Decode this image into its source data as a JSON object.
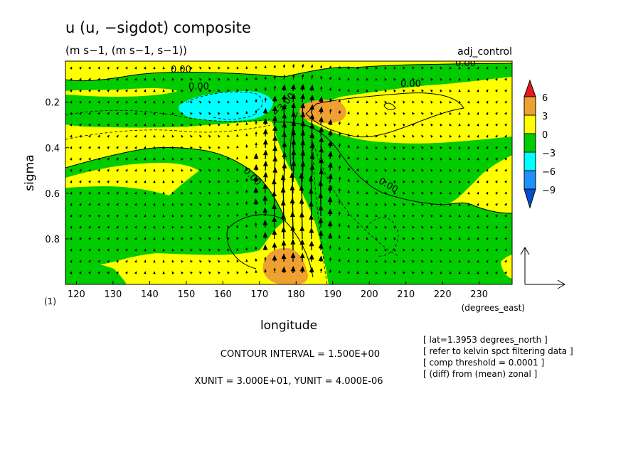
{
  "chart_data": {
    "type": "heatmap",
    "title": "u (u, −sigdot) composite",
    "subtitle": "(m s−1, (m s−1, s−1))",
    "experiment": "adj_control",
    "xlabel": "longitude",
    "xunits": "(degrees_east)",
    "ylabel": "sigma",
    "ylabel_unit": "(1)",
    "xlim": [
      117,
      239
    ],
    "ylim": [
      1.0,
      0.02
    ],
    "x_ticks": [
      120,
      130,
      140,
      150,
      160,
      170,
      180,
      190,
      200,
      210,
      220,
      230
    ],
    "y_ticks": [
      0.2,
      0.4,
      0.6,
      0.8
    ],
    "colorbar": {
      "levels": [
        6,
        3,
        0,
        -3,
        -6,
        -9
      ],
      "labels": [
        "6",
        "3",
        "0",
        "−3",
        "−6",
        "−9"
      ],
      "colors": [
        "#e31a1c",
        "#f0a030",
        "#ffff00",
        "#00cc00",
        "#00ffff",
        "#1e90ff",
        "#0050d0"
      ]
    },
    "contour_labels": [
      {
        "text": "0.00",
        "x": 161,
        "y": 0.06
      },
      {
        "text": "0.00",
        "x": 153,
        "y": 0.13
      },
      {
        "text": "0.00",
        "x": 233,
        "y": 0.05
      },
      {
        "text": "0.00",
        "x": 214,
        "y": 0.12
      },
      {
        "text": "−3.00",
        "x": 180.5,
        "y": 0.22
      },
      {
        "text": "0.00",
        "x": 175,
        "y": 0.52
      },
      {
        "text": "0.00",
        "x": 209,
        "y": 0.58
      }
    ],
    "shaded_regions": [
      {
        "name": "upper-negative-band",
        "level": "-3 to 0",
        "x_range": [
          117,
          239
        ],
        "y_range": [
          0.05,
          0.35
        ]
      },
      {
        "name": "strong-negative-core",
        "level": "-6 to -3",
        "x_range": [
          162,
          184
        ],
        "y_range": [
          0.14,
          0.28
        ],
        "center": [
          172,
          0.2
        ]
      },
      {
        "name": "upper-positive-core",
        "level": "3 to 6",
        "x_range": [
          183,
          193
        ],
        "y_range": [
          0.19,
          0.29
        ],
        "center": [
          187,
          0.24
        ]
      },
      {
        "name": "lower-positive-core",
        "level": "3 to 6",
        "x_range": [
          173,
          183
        ],
        "y_range": [
          0.82,
          1.0
        ],
        "center": [
          178,
          0.92
        ]
      },
      {
        "name": "descending-negative-tongue",
        "level": "-3 to 0",
        "x_range": [
          175,
          239
        ],
        "y_range": [
          0.3,
          1.0
        ]
      }
    ],
    "vector_field": {
      "quantity": "(u, −sigdot)",
      "max_vectors_near": [
        180,
        0.55
      ],
      "reference_unit": "XUNIT = 3.000E+01, YUNIT = 4.000E-06"
    }
  },
  "annotations": {
    "contour_interval": "CONTOUR INTERVAL = 1.500E+00",
    "vector_units": "XUNIT = 3.000E+01, YUNIT = 4.000E-06",
    "lat": "[ lat=1.3953 degrees_north ]",
    "refer": "[ refer to kelvin spct filtering data ]",
    "threshold": "[ comp threshold = 0.0001 ]",
    "diff": "[ (diff) from (mean) zonal ]"
  }
}
